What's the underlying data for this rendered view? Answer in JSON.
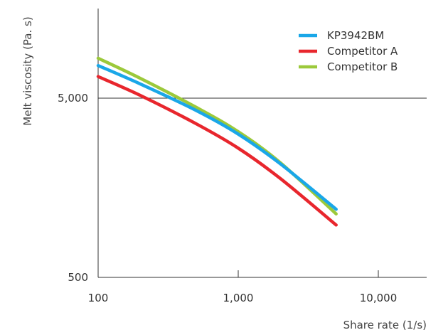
{
  "chart_data": {
    "type": "line",
    "title": "",
    "xlabel": "Share rate (1/s)",
    "ylabel": "Melt viscosity (Pa. s)",
    "x_scale": "log",
    "y_scale": "log",
    "xlim": [
      100,
      25000
    ],
    "ylim": [
      500,
      15000
    ],
    "x_ticks": [
      {
        "value": 100,
        "label": "100"
      },
      {
        "value": 1000,
        "label": "1,000"
      },
      {
        "value": 10000,
        "label": "10,000"
      }
    ],
    "y_ticks": [
      {
        "value": 500,
        "label": "500"
      },
      {
        "value": 5000,
        "label": "5,000"
      }
    ],
    "gridlines": [
      {
        "axis": "y",
        "value": 5000
      }
    ],
    "legend_position": "top-right",
    "series": [
      {
        "name": "KP3942BM",
        "color": "#1aa7e8",
        "x": [
          100,
          200,
          500,
          1000,
          2000,
          5000
        ],
        "y": [
          7600,
          6000,
          4270,
          3150,
          2150,
          1200
        ]
      },
      {
        "name": "Competitor A",
        "color": "#e8262d",
        "x": [
          100,
          200,
          500,
          1000,
          2000,
          5000
        ],
        "y": [
          6600,
          5180,
          3600,
          2630,
          1780,
          980
        ]
      },
      {
        "name": "Competitor B",
        "color": "#9cc93b",
        "x": [
          100,
          200,
          500,
          1000,
          2000,
          5000
        ],
        "y": [
          8350,
          6450,
          4450,
          3250,
          2180,
          1130
        ]
      }
    ]
  }
}
